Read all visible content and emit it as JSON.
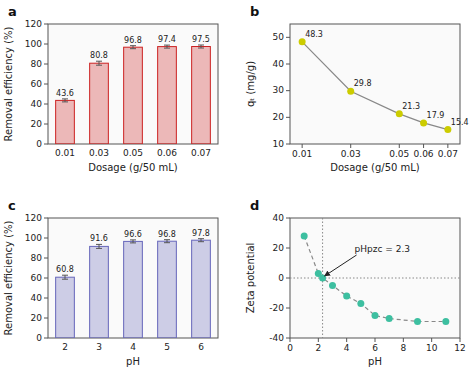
{
  "chart_data": [
    {
      "type": "bar",
      "title": "a",
      "categories": [
        "0.01",
        "0.03",
        "0.05",
        "0.06",
        "0.07"
      ],
      "values": [
        43.6,
        80.8,
        96.8,
        97.4,
        97.5
      ],
      "errors": [
        1.5,
        2.0,
        1.5,
        1.5,
        1.5
      ],
      "xlabel": "Dosage (g/50 mL)",
      "ylabel": "Removal efficiency (%)",
      "ylim": [
        0,
        120
      ],
      "yticks": [
        0,
        20,
        40,
        60,
        80,
        100,
        120
      ],
      "color": "#cc2222",
      "data_labels": true
    },
    {
      "type": "line",
      "title": "b",
      "x": [
        0.01,
        0.03,
        0.05,
        0.06,
        0.07
      ],
      "series": [
        {
          "values": [
            48.3,
            29.8,
            21.3,
            17.9,
            15.4
          ],
          "color": "#cccc00",
          "marker": "circle",
          "line_style": "solid"
        }
      ],
      "xlabel": "Dosage (g/50 mL)",
      "ylabel": "qₜ (mg/g)",
      "xlim": [
        0.005,
        0.075
      ],
      "xticks": [
        0.01,
        0.03,
        0.05,
        0.06,
        0.07
      ],
      "ylim": [
        10,
        55
      ],
      "yticks": [
        10,
        20,
        30,
        40,
        50
      ],
      "data_labels": true
    },
    {
      "type": "bar",
      "title": "c",
      "categories": [
        "2",
        "3",
        "4",
        "5",
        "6"
      ],
      "values": [
        60.8,
        91.6,
        96.6,
        96.8,
        97.8
      ],
      "errors": [
        2.0,
        2.0,
        1.5,
        1.5,
        1.5
      ],
      "xlabel": "pH",
      "ylabel": "Removal efficiency (%)",
      "ylim": [
        0,
        120
      ],
      "yticks": [
        0,
        20,
        40,
        60,
        80,
        100,
        120
      ],
      "color": "#6666bb",
      "data_labels": true
    },
    {
      "type": "line",
      "title": "d",
      "x": [
        1.0,
        2.0,
        2.3,
        3.0,
        4.0,
        5.0,
        6.0,
        7.0,
        9.0,
        11.0
      ],
      "series": [
        {
          "values": [
            28,
            3,
            0,
            -5,
            -12,
            -17,
            -25,
            -27,
            -29,
            -29
          ],
          "color": "#3dbfa0",
          "marker": "circle",
          "line_style": "dashed"
        }
      ],
      "xlabel": "pH",
      "ylabel": "Zeta potential",
      "xlim": [
        0,
        12
      ],
      "xticks": [
        0,
        2,
        4,
        6,
        8,
        10,
        12
      ],
      "ylim": [
        -40,
        40
      ],
      "yticks": [
        -40,
        -20,
        0,
        20,
        40
      ],
      "annotations": [
        {
          "text": "pHpzc = 2.3",
          "x": 2.3,
          "y": 0
        }
      ]
    }
  ]
}
